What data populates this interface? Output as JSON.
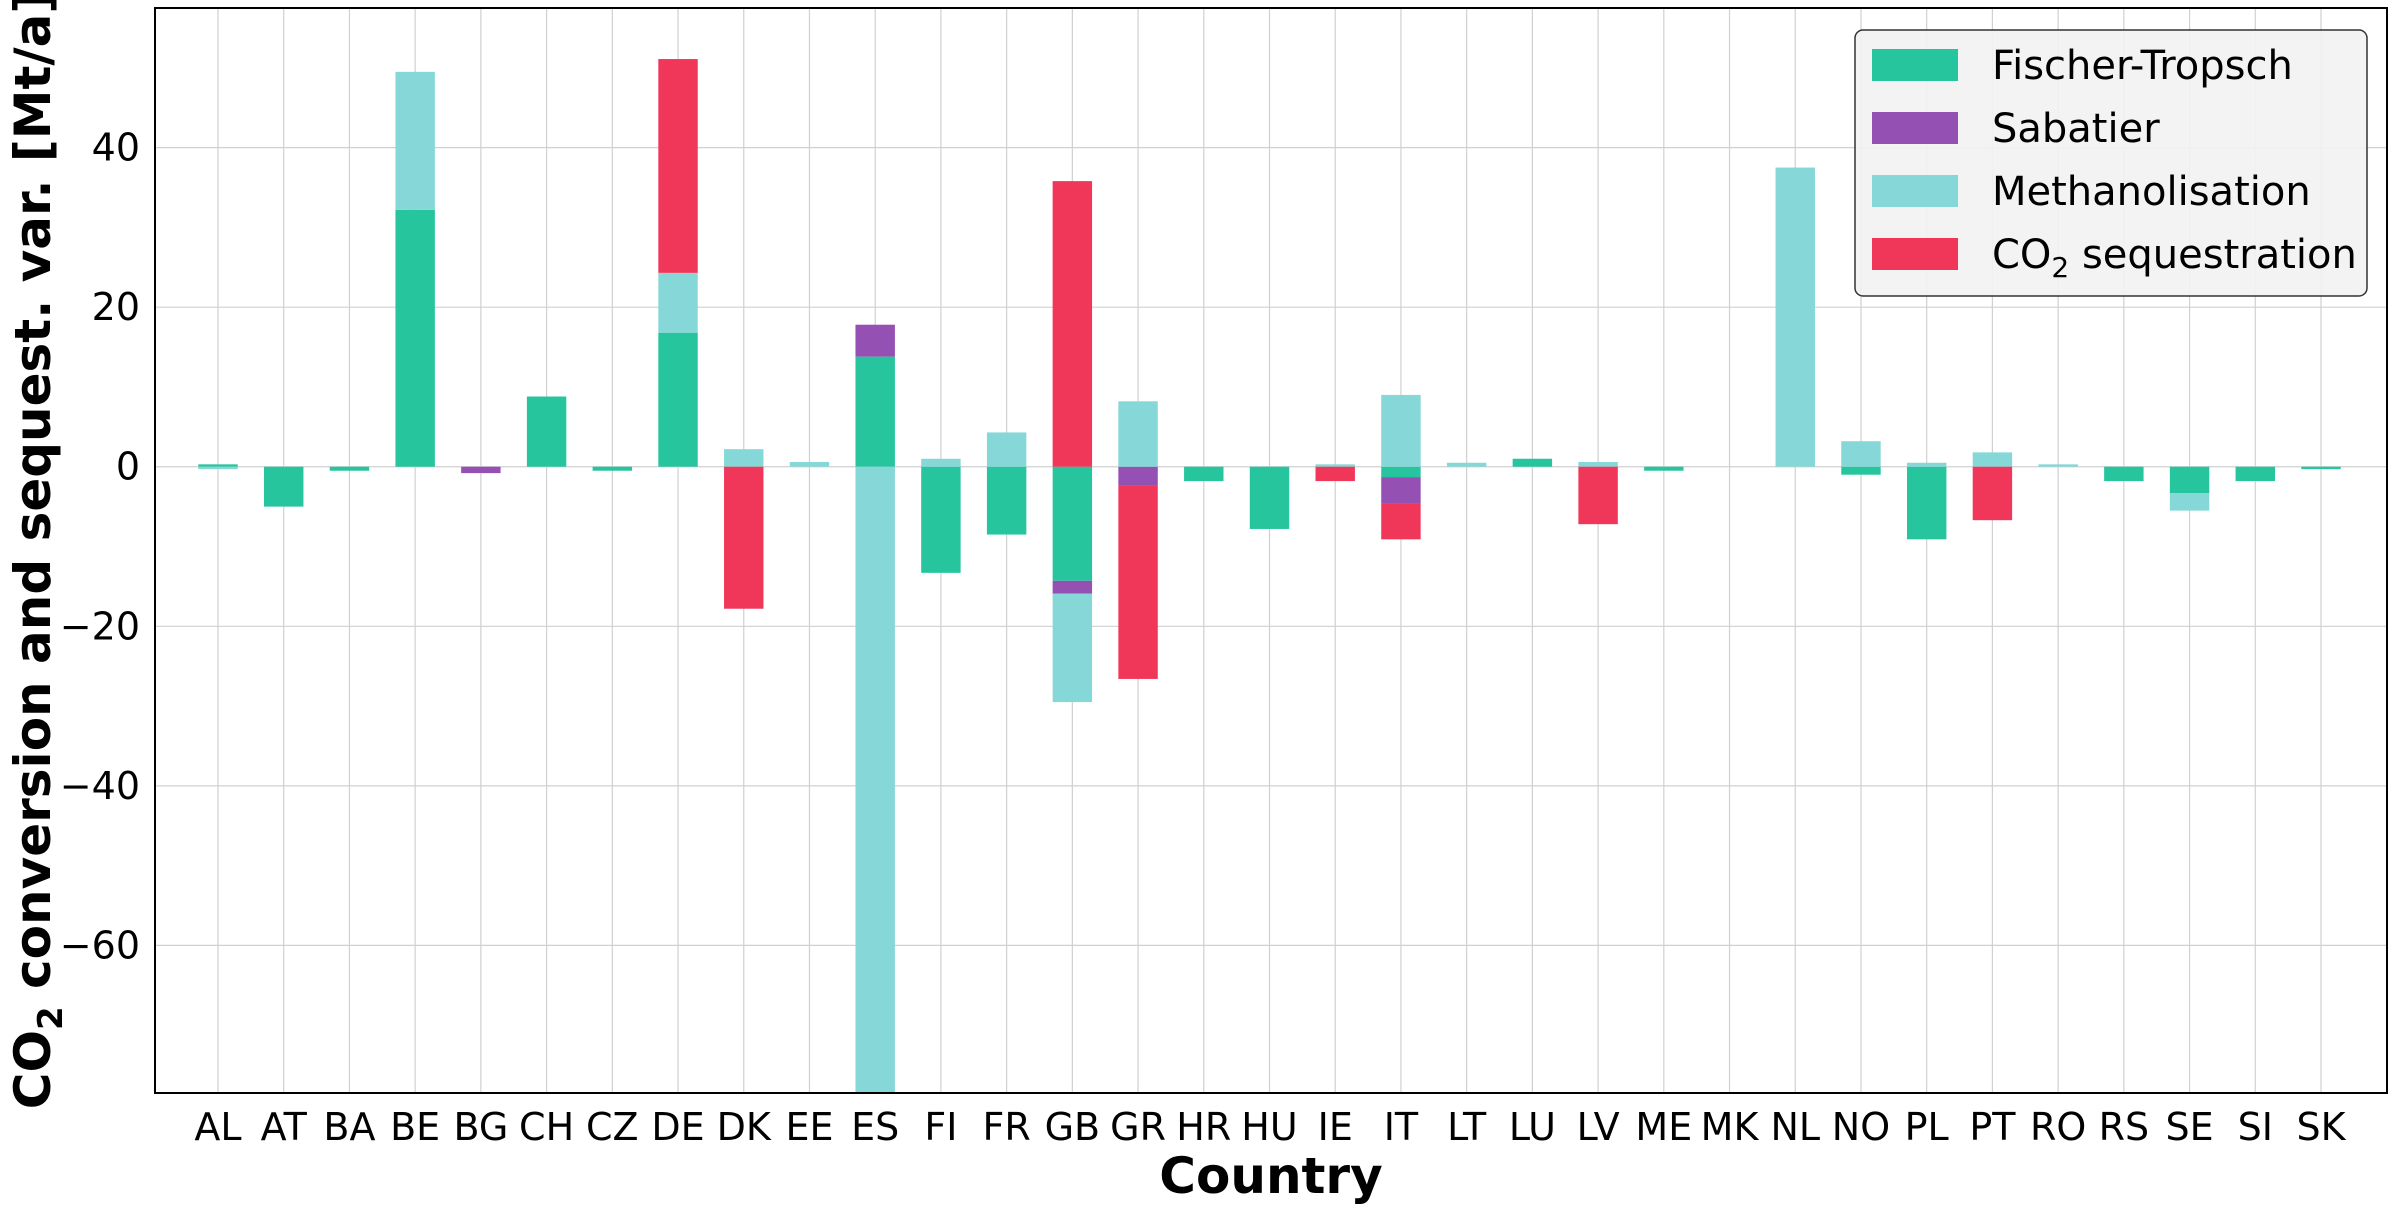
{
  "chart_data": {
    "type": "bar",
    "stacked": true,
    "grid": true,
    "legend_position": "top-right",
    "xlabel": "Country",
    "ylabel": "CO₂ conversion and sequest. var. [Mt/a]",
    "ylim": [
      -78.5,
      57.5
    ],
    "yticks": [
      40,
      20,
      0,
      -20,
      -40,
      -60
    ],
    "ytick_labels": [
      "40",
      "20",
      "0",
      "−20",
      "−40",
      "−60"
    ],
    "categories": [
      "AL",
      "AT",
      "BA",
      "BE",
      "BG",
      "CH",
      "CZ",
      "DE",
      "DK",
      "EE",
      "ES",
      "FI",
      "FR",
      "GB",
      "GR",
      "HR",
      "HU",
      "IE",
      "IT",
      "LT",
      "LU",
      "LV",
      "ME",
      "MK",
      "NL",
      "NO",
      "PL",
      "PT",
      "RO",
      "RS",
      "SE",
      "SI",
      "SK"
    ],
    "series": [
      {
        "name": "Fischer-Tropsch",
        "color": "#26c59e",
        "values": [
          0.3,
          -5,
          -0.5,
          32.2,
          0,
          8.8,
          -0.5,
          16.8,
          0,
          0,
          13.8,
          -13.3,
          -8.5,
          -14.3,
          0,
          -1.8,
          -7.8,
          0,
          -1.3,
          0,
          1,
          0,
          -0.5,
          0,
          0,
          -1,
          -9.1,
          0,
          0,
          -1.8,
          -3.3,
          -1.8,
          -0.3
        ]
      },
      {
        "name": "Sabatier",
        "color": "#9550b3",
        "values": [
          0,
          0,
          0,
          0,
          -0.8,
          0,
          0,
          0,
          0,
          0,
          4,
          0,
          0,
          -1.6,
          -2.3,
          0,
          0,
          0,
          -3.3,
          0,
          0,
          0,
          0,
          0,
          0,
          0,
          0,
          0,
          0,
          0,
          0,
          0,
          0
        ]
      },
      {
        "name": "Methanolisation",
        "color": "#86d7d7",
        "values": [
          -0.3,
          0,
          0,
          17.3,
          0,
          0,
          0,
          7.5,
          2.2,
          0.6,
          -78.5,
          1,
          4.3,
          -13.6,
          8.2,
          0,
          0,
          0.3,
          9,
          0.5,
          0,
          0.6,
          0,
          0,
          37.5,
          3.2,
          0.5,
          1.8,
          0.3,
          0,
          -2.2,
          0,
          0
        ]
      },
      {
        "name": "CO₂ sequestration",
        "name_base": "CO",
        "name_sub": "2",
        "name_rest": " sequestration",
        "color": "#f0375a",
        "values": [
          0,
          0,
          0,
          0,
          0,
          0,
          0,
          26.8,
          -17.8,
          0,
          0,
          0,
          0,
          35.8,
          -24.3,
          0,
          0,
          -1.8,
          -4.5,
          0,
          0,
          -7.2,
          0,
          0,
          0,
          0,
          0,
          -6.7,
          0,
          0,
          0,
          0,
          0
        ]
      }
    ]
  }
}
